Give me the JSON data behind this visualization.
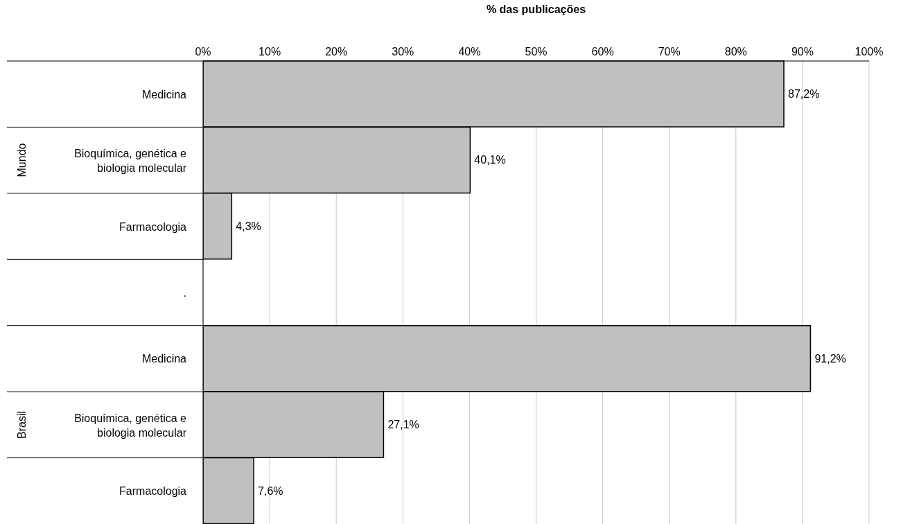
{
  "chart_data": {
    "type": "bar",
    "orientation": "horizontal",
    "xlabel": "% das publicações",
    "categories": [
      "Medicina",
      "Bioquímica, genética e biologia molecular",
      "Farmacologia",
      ".",
      "Medicina",
      "Bioquímica, genética e biologia molecular",
      "Farmacologia"
    ],
    "values": [
      87.2,
      40.1,
      4.3,
      null,
      91.2,
      27.1,
      7.6
    ],
    "value_labels": [
      "87,2%",
      "40,1%",
      "4,3%",
      null,
      "91,2%",
      "27,1%",
      "7,6%"
    ],
    "color": "#c0c0c0",
    "xlim": [
      0,
      100
    ],
    "xticks": [
      {
        "value": 0,
        "label": "0%"
      },
      {
        "value": 10,
        "label": "10%"
      },
      {
        "value": 20,
        "label": "20%"
      },
      {
        "value": 30,
        "label": "30%"
      },
      {
        "value": 40,
        "label": "40%"
      },
      {
        "value": 50,
        "label": "50%"
      },
      {
        "value": 60,
        "label": "60%"
      },
      {
        "value": 70,
        "label": "70%"
      },
      {
        "value": 80,
        "label": "80%"
      },
      {
        "value": 90,
        "label": "90%"
      },
      {
        "value": 100,
        "label": "100%"
      }
    ],
    "grid": "x",
    "annotations": [
      "Mundo",
      "Brasil"
    ]
  }
}
